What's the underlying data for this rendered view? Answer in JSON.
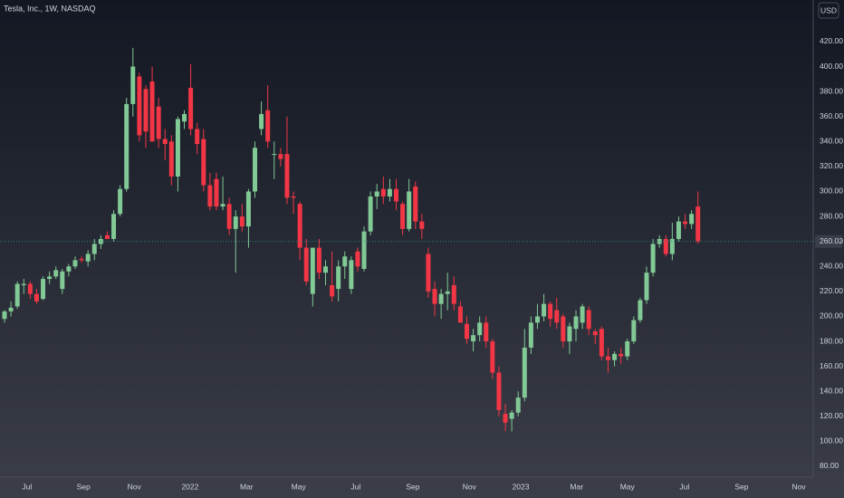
{
  "chart_data": {
    "type": "candlestick",
    "title": "Tesla, Inc., 1W, NASDAQ",
    "currency": "USD",
    "x": [
      0,
      1,
      2,
      3,
      4,
      5,
      6,
      7,
      8,
      9,
      10,
      11,
      12,
      13,
      14,
      15,
      16,
      17,
      18,
      19,
      20,
      21,
      22,
      23,
      24,
      25,
      26,
      27,
      28,
      29,
      30,
      31,
      32,
      33,
      34,
      35,
      36,
      37,
      38,
      39,
      40,
      41,
      42,
      43,
      44,
      45,
      46,
      47,
      48,
      49,
      50,
      51,
      52,
      53,
      54,
      55,
      56,
      57,
      58,
      59,
      60,
      61,
      62,
      63,
      64,
      65,
      66,
      67,
      68,
      69,
      70,
      71,
      72,
      73,
      74,
      75,
      76,
      77,
      78,
      79,
      80,
      81,
      82,
      83,
      84,
      85,
      86,
      87,
      88,
      89,
      90,
      91,
      92,
      93,
      94,
      95,
      96,
      97,
      98,
      99,
      100,
      101,
      102,
      103,
      104,
      105,
      106,
      107,
      108
    ],
    "open": [
      198,
      204,
      208,
      225,
      226,
      218,
      214,
      230,
      232,
      222,
      236,
      240,
      246,
      244,
      250,
      258,
      265,
      262,
      282,
      302,
      370,
      392,
      382,
      388,
      368,
      342,
      340,
      312,
      356,
      383,
      350,
      342,
      305,
      310,
      288,
      290,
      270,
      280,
      272,
      300,
      350,
      365,
      330,
      330,
      330,
      296,
      290,
      255,
      218,
      255,
      235,
      225,
      222,
      240,
      222,
      252,
      238,
      268,
      296,
      302,
      296,
      302,
      290,
      270,
      304,
      276,
      250,
      222,
      210,
      218,
      225,
      208,
      194,
      180,
      185,
      195,
      180,
      155,
      122,
      118,
      123,
      135,
      175,
      195,
      200,
      210,
      205,
      200,
      180,
      190,
      195,
      205,
      188,
      190,
      168,
      165,
      170,
      168,
      180,
      197,
      213,
      235,
      258,
      262,
      250,
      262,
      276,
      274,
      288
    ],
    "high": [
      205,
      212,
      228,
      230,
      228,
      222,
      232,
      236,
      240,
      238,
      242,
      248,
      248,
      253,
      262,
      265,
      268,
      285,
      305,
      375,
      415,
      395,
      385,
      400,
      375,
      350,
      345,
      360,
      365,
      402,
      355,
      350,
      315,
      315,
      312,
      295,
      285,
      290,
      302,
      340,
      372,
      385,
      340,
      335,
      360,
      300,
      292,
      262,
      255,
      262,
      245,
      252,
      245,
      252,
      248,
      255,
      272,
      300,
      306,
      312,
      310,
      310,
      292,
      310,
      308,
      282,
      255,
      228,
      222,
      235,
      232,
      212,
      200,
      190,
      200,
      200,
      182,
      160,
      130,
      125,
      140,
      190,
      200,
      210,
      218,
      212,
      215,
      202,
      195,
      205,
      210,
      208,
      190,
      192,
      175,
      172,
      175,
      182,
      200,
      215,
      240,
      262,
      265,
      265,
      275,
      280,
      282,
      285,
      300
    ],
    "low": [
      195,
      200,
      206,
      218,
      214,
      210,
      213,
      226,
      230,
      218,
      232,
      238,
      243,
      240,
      245,
      254,
      262,
      260,
      280,
      300,
      360,
      340,
      335,
      340,
      335,
      325,
      305,
      300,
      350,
      345,
      330,
      300,
      285,
      285,
      285,
      265,
      235,
      268,
      255,
      295,
      345,
      335,
      310,
      320,
      290,
      282,
      245,
      225,
      208,
      230,
      225,
      212,
      212,
      230,
      218,
      236,
      236,
      265,
      286,
      290,
      292,
      285,
      265,
      268,
      270,
      262,
      215,
      200,
      198,
      205,
      205,
      195,
      178,
      172,
      180,
      175,
      150,
      120,
      108,
      108,
      120,
      132,
      170,
      190,
      196,
      192,
      190,
      175,
      170,
      180,
      190,
      185,
      178,
      165,
      155,
      160,
      162,
      165,
      178,
      195,
      210,
      232,
      255,
      248,
      245,
      260,
      270,
      270,
      258
    ],
    "close": [
      204,
      207,
      226,
      226,
      218,
      212,
      230,
      232,
      237,
      236,
      240,
      245,
      245,
      250,
      258,
      262,
      262,
      282,
      302,
      370,
      400,
      345,
      348,
      340,
      342,
      338,
      312,
      358,
      362,
      350,
      338,
      305,
      288,
      288,
      290,
      270,
      280,
      272,
      300,
      335,
      362,
      340,
      330,
      326,
      295,
      295,
      255,
      228,
      255,
      235,
      240,
      216,
      240,
      248,
      245,
      240,
      268,
      296,
      300,
      296,
      302,
      292,
      270,
      300,
      276,
      270,
      220,
      210,
      218,
      220,
      210,
      195,
      182,
      185,
      195,
      180,
      155,
      125,
      115,
      123,
      135,
      175,
      195,
      200,
      210,
      198,
      195,
      180,
      192,
      200,
      208,
      190,
      185,
      168,
      165,
      170,
      168,
      180,
      197,
      213,
      235,
      258,
      262,
      250,
      262,
      276,
      274,
      282,
      260
    ],
    "up_color": "#81c995",
    "down_color": "#f23645",
    "xlim": [
      -0.705,
      125.95
    ],
    "xticks": [
      {
        "value": 3.5,
        "label": "Jul"
      },
      {
        "value": 12.3,
        "label": "Sep"
      },
      {
        "value": 20.2,
        "label": "Nov"
      },
      {
        "value": 28.9,
        "label": "2022"
      },
      {
        "value": 37.7,
        "label": "Mar"
      },
      {
        "value": 45.8,
        "label": "May"
      },
      {
        "value": 54.7,
        "label": "Jul"
      },
      {
        "value": 63.6,
        "label": "Sep"
      },
      {
        "value": 72.4,
        "label": "Nov"
      },
      {
        "value": 80.4,
        "label": "2023"
      },
      {
        "value": 89.1,
        "label": "Mar"
      },
      {
        "value": 97.0,
        "label": "May"
      },
      {
        "value": 105.9,
        "label": "Jul"
      },
      {
        "value": 114.8,
        "label": "Sep"
      },
      {
        "value": 123.7,
        "label": "Nov"
      }
    ],
    "ylim": [
      71.3,
      453.3
    ],
    "yticks": [
      {
        "value": 80,
        "label": "80.00"
      },
      {
        "value": 100,
        "label": "100.00"
      },
      {
        "value": 120,
        "label": "120.00"
      },
      {
        "value": 140,
        "label": "140.00"
      },
      {
        "value": 160,
        "label": "160.00"
      },
      {
        "value": 180,
        "label": "180.00"
      },
      {
        "value": 200,
        "label": "200.00"
      },
      {
        "value": 220,
        "label": "220.00"
      },
      {
        "value": 240,
        "label": "240.00"
      },
      {
        "value": 260,
        "label": "260.00"
      },
      {
        "value": 280,
        "label": "280.00"
      },
      {
        "value": 300,
        "label": "300.00"
      },
      {
        "value": 320,
        "label": "320.00"
      },
      {
        "value": 340,
        "label": "340.00"
      },
      {
        "value": 360,
        "label": "360.00"
      },
      {
        "value": 380,
        "label": "380.00"
      },
      {
        "value": 400,
        "label": "400.00"
      },
      {
        "value": 420,
        "label": "420.00"
      }
    ],
    "last_price": {
      "value": 260.02,
      "label": "260.02"
    },
    "grid": false
  }
}
